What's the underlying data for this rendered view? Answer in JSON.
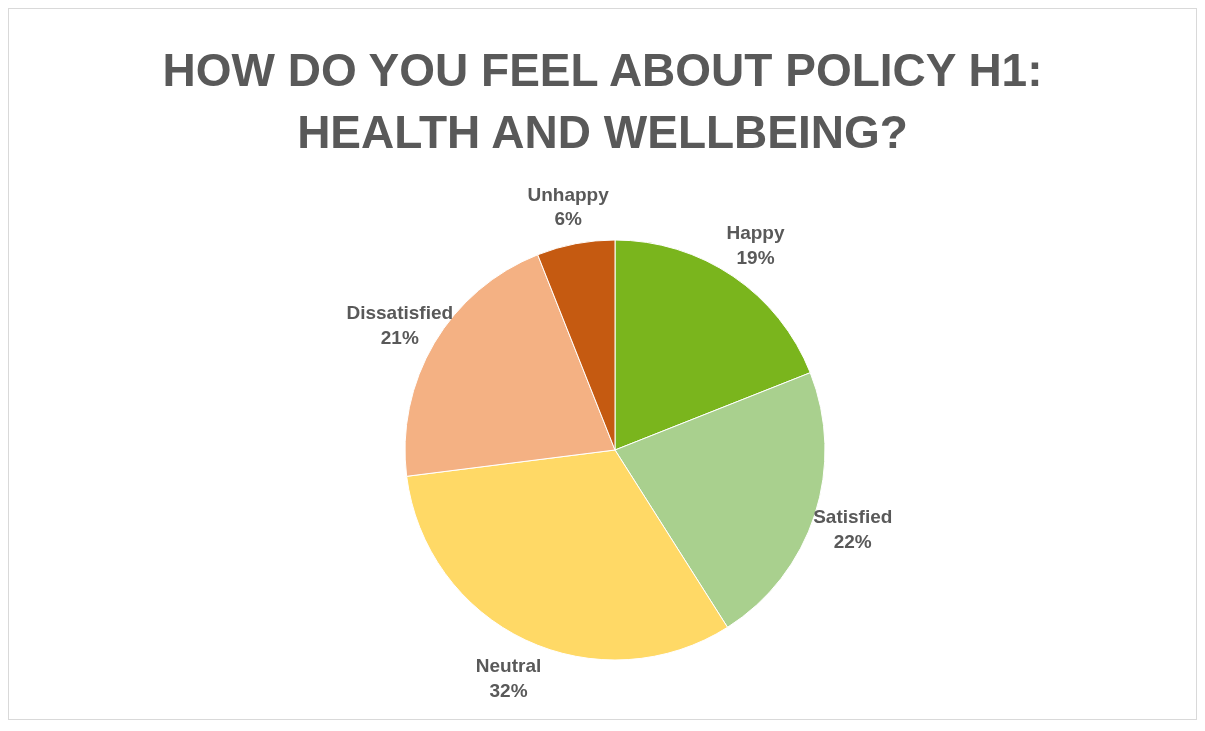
{
  "chart_data": {
    "type": "pie",
    "title": "HOW DO YOU FEEL ABOUT POLICY H1: HEALTH AND WELLBEING?",
    "categories": [
      "Happy",
      "Satisfied",
      "Neutral",
      "Dissatisfied",
      "Unhappy"
    ],
    "values": [
      19,
      22,
      32,
      21,
      6
    ],
    "value_labels": [
      "19%",
      "22%",
      "32%",
      "21%",
      "6%"
    ],
    "colors": [
      "#7ab51d",
      "#a9d08e",
      "#ffd966",
      "#f4b183",
      "#c55a11"
    ]
  }
}
